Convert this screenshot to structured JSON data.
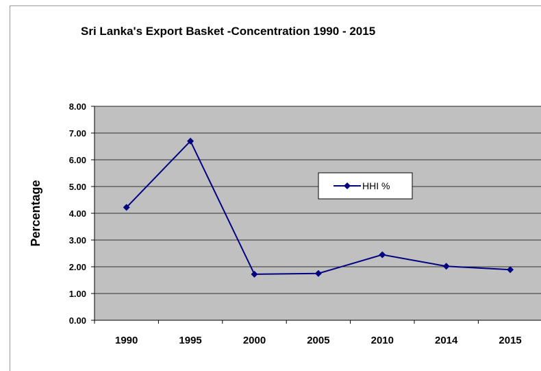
{
  "chart_data": {
    "type": "line",
    "title": "Sri Lanka's Export Basket -Concentration 1990 - 2015",
    "xlabel": "",
    "ylabel": "Percentage",
    "categories": [
      "1990",
      "1995",
      "2000",
      "2005",
      "2010",
      "2014",
      "2015"
    ],
    "series": [
      {
        "name": "HHI %",
        "values": [
          4.22,
          6.7,
          1.72,
          1.75,
          2.45,
          2.02,
          1.89
        ],
        "color": "#000080"
      }
    ],
    "ylim": [
      0,
      8
    ],
    "yticks": [
      "0.00",
      "1.00",
      "2.00",
      "3.00",
      "4.00",
      "5.00",
      "6.00",
      "7.00",
      "8.00"
    ],
    "grid": true,
    "plot_background": "#c0c0c0",
    "legend_position": "inside-center-right"
  }
}
